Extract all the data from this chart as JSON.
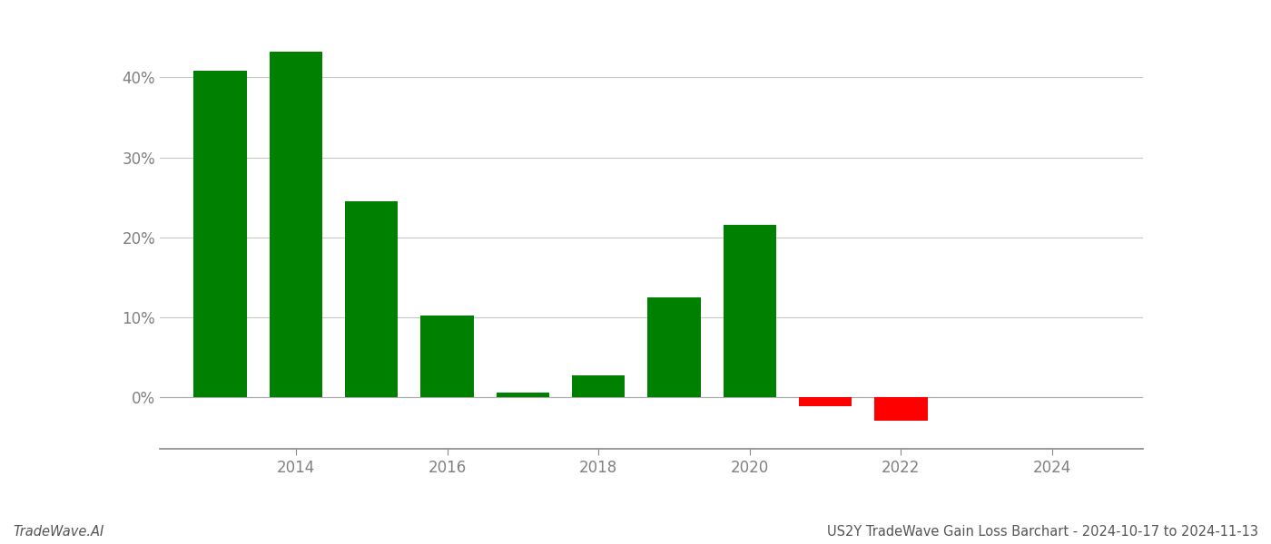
{
  "years": [
    2013,
    2014,
    2015,
    2016,
    2017,
    2018,
    2019,
    2020,
    2021,
    2022,
    2023
  ],
  "values": [
    0.408,
    0.432,
    0.245,
    0.102,
    0.005,
    0.027,
    0.125,
    0.215,
    -0.012,
    -0.03,
    0.0
  ],
  "bar_width": 0.7,
  "title": "US2Y TradeWave Gain Loss Barchart - 2024-10-17 to 2024-11-13",
  "watermark": "TradeWave.AI",
  "ylim_min": -0.065,
  "ylim_max": 0.48,
  "xlim_min": 2012.2,
  "xlim_max": 2025.2,
  "background_color": "#ffffff",
  "positive_color": "#008000",
  "negative_color": "#ff0000",
  "grid_color": "#c8c8c8",
  "axis_label_color": "#808080",
  "title_color": "#555555",
  "watermark_color": "#555555",
  "title_fontsize": 10.5,
  "watermark_fontsize": 10.5,
  "tick_fontsize": 12,
  "ytick_positions": [
    0.0,
    0.1,
    0.2,
    0.3,
    0.4
  ],
  "ytick_labels": [
    "0%",
    "10%",
    "20%",
    "30%",
    "40%"
  ],
  "xtick_positions": [
    2014,
    2016,
    2018,
    2020,
    2022,
    2024
  ]
}
